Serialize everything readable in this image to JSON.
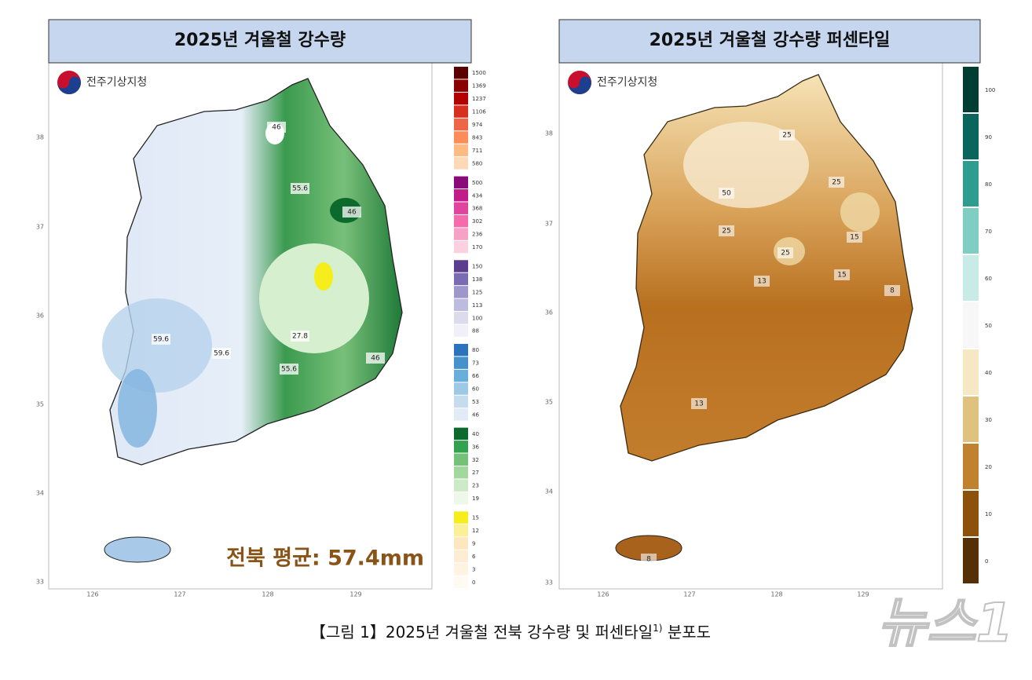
{
  "left_panel": {
    "title": "2025년 겨울철 강수량",
    "logo": "전주기상지청",
    "annotation": "전북 평균: 57.4mm",
    "latitudes": [
      "38",
      "37",
      "36",
      "35",
      "34",
      "33"
    ],
    "longitudes": [
      "126",
      "127",
      "128",
      "129"
    ],
    "contour_labels": [
      "46",
      "55.6",
      "46",
      "27.8",
      "55.6",
      "59.6",
      "59.6",
      "46"
    ],
    "legend": [
      {
        "label": "1500",
        "color": "#5a0000"
      },
      {
        "label": "1369",
        "color": "#8b0000"
      },
      {
        "label": "1237",
        "color": "#b30000"
      },
      {
        "label": "1106",
        "color": "#d7301f"
      },
      {
        "label": "974",
        "color": "#ef6548"
      },
      {
        "label": "843",
        "color": "#fc8d59"
      },
      {
        "label": "711",
        "color": "#fdbb84"
      },
      {
        "label": "580",
        "color": "#fdd9b8"
      },
      {
        "label": "500",
        "color": "#8b0a7a"
      },
      {
        "label": "434",
        "color": "#c21b8a"
      },
      {
        "label": "368",
        "color": "#e0449c"
      },
      {
        "label": "302",
        "color": "#f46cab"
      },
      {
        "label": "236",
        "color": "#f7a1c4"
      },
      {
        "label": "170",
        "color": "#fbd0df"
      },
      {
        "label": "150",
        "color": "#5b3e8f"
      },
      {
        "label": "138",
        "color": "#7a6bb3"
      },
      {
        "label": "125",
        "color": "#9d97cb"
      },
      {
        "label": "113",
        "color": "#bdbbde"
      },
      {
        "label": "100",
        "color": "#dcdbee"
      },
      {
        "label": "88",
        "color": "#f1f0f8"
      },
      {
        "label": "80",
        "color": "#2c73bb"
      },
      {
        "label": "73",
        "color": "#4692cb"
      },
      {
        "label": "66",
        "color": "#6aaedb"
      },
      {
        "label": "60",
        "color": "#9dc9e6"
      },
      {
        "label": "53",
        "color": "#c5dcef"
      },
      {
        "label": "46",
        "color": "#e1ecf7"
      },
      {
        "label": "40",
        "color": "#0c6b2c"
      },
      {
        "label": "36",
        "color": "#34a150"
      },
      {
        "label": "32",
        "color": "#73c277"
      },
      {
        "label": "27",
        "color": "#a2d89c"
      },
      {
        "label": "23",
        "color": "#cbeac5"
      },
      {
        "label": "19",
        "color": "#eef8ea"
      },
      {
        "label": "15",
        "color": "#f5ee1a"
      },
      {
        "label": "12",
        "color": "#fbef97"
      },
      {
        "label": "9",
        "color": "#fde7bf"
      },
      {
        "label": "6",
        "color": "#feedd3"
      },
      {
        "label": "3",
        "color": "#fff3e2"
      },
      {
        "label": "0",
        "color": "#fffaf2"
      }
    ]
  },
  "right_panel": {
    "title": "2025년 겨울철 강수량 퍼센타일",
    "logo": "전주기상지청",
    "latitudes": [
      "38",
      "37",
      "36",
      "35",
      "34",
      "33"
    ],
    "longitudes": [
      "126",
      "127",
      "128",
      "129"
    ],
    "contour_labels": [
      "25",
      "50",
      "25",
      "25",
      "15",
      "25",
      "13",
      "15",
      "8",
      "13",
      "8"
    ],
    "legend": [
      {
        "label": "100",
        "color": "#013d33"
      },
      {
        "label": "90",
        "color": "#0a665c"
      },
      {
        "label": "80",
        "color": "#2f9c90"
      },
      {
        "label": "70",
        "color": "#80cdc1"
      },
      {
        "label": "60",
        "color": "#c9ebe6"
      },
      {
        "label": "50",
        "color": "#f7f7f7"
      },
      {
        "label": "40",
        "color": "#f6e8c3"
      },
      {
        "label": "30",
        "color": "#dfc27d"
      },
      {
        "label": "20",
        "color": "#c0822e"
      },
      {
        "label": "10",
        "color": "#8c510a"
      },
      {
        "label": "0",
        "color": "#553006"
      }
    ]
  },
  "caption": {
    "text": "【그림 1】2025년 겨울철 전북 강수량 및 퍼센타일",
    "footnote": "1)",
    "tail": " 분포도"
  },
  "watermark": "뉴스1"
}
